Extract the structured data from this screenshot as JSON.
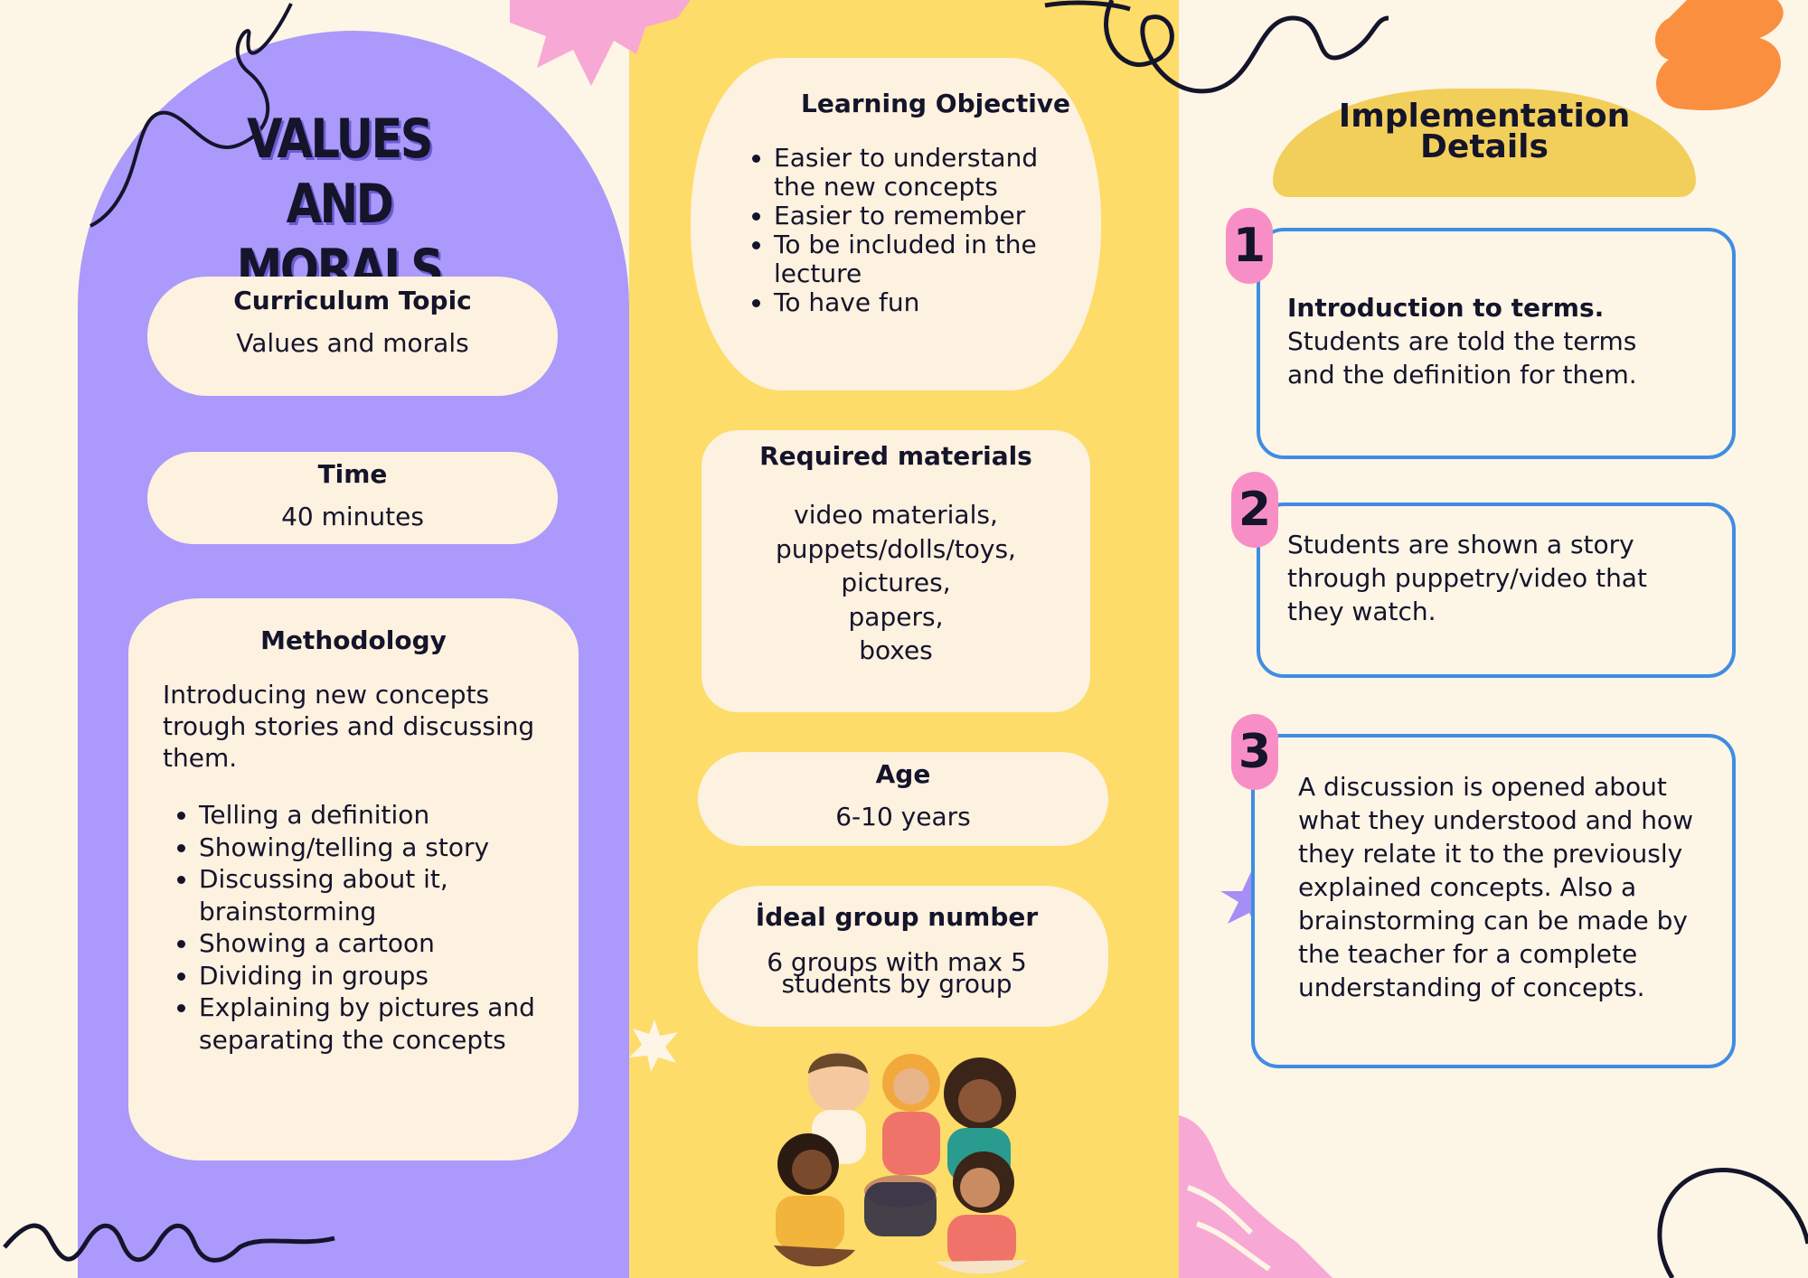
{
  "title": {
    "line1": "VALUES AND",
    "line2": "MORALS"
  },
  "left": {
    "curriculum": {
      "heading": "Curriculum Topic",
      "value": "Values and morals"
    },
    "time": {
      "heading": "Time",
      "value": "40 minutes"
    },
    "methodology": {
      "heading": "Methodology",
      "intro": "Introducing new concepts trough stories and discussing them.",
      "items": [
        "Telling a definition",
        "Showing/telling a story",
        "Discussing about it, brainstorming",
        "Showing a cartoon",
        "Dividing in groups",
        "Explaining by pictures and separating the concepts"
      ]
    }
  },
  "middle": {
    "objective": {
      "heading": "Learning Objective",
      "items": [
        "Easier to understand the new concepts",
        "Easier to remember",
        "To be included in the lecture",
        "To have fun"
      ]
    },
    "materials": {
      "heading": "Required materials",
      "lines": [
        "video materials,",
        "puppets/dolls/toys,",
        "pictures,",
        "papers,",
        "boxes"
      ]
    },
    "age": {
      "heading": "Age",
      "value": "6-10 years"
    },
    "group": {
      "heading": "İdeal group number",
      "line1": "6 groups with max 5",
      "line2": "students by group"
    }
  },
  "right": {
    "heading": {
      "line1": "Implementation",
      "line2": "Details"
    },
    "steps": [
      {
        "number": "1",
        "bold": "Introduction to terms.",
        "text": "Students are told the terms and the definition for them."
      },
      {
        "number": "2",
        "text": "Students are shown a story through puppetry/video that they watch."
      },
      {
        "number": "3",
        "text": "A discussion is opened about what they understood and how they relate it to the previously explained concepts. Also a brainstorming can be made by the teacher for a complete understanding of concepts."
      }
    ]
  },
  "colors": {
    "purple": "#ab99fb",
    "yellow": "#fddc6a",
    "cream": "#fdf5e6",
    "blue": "#3f8de3",
    "pink": "#f78fc6",
    "orange": "#fa8f3f"
  },
  "illustration": {
    "subject": "children-sitting-in-circle"
  }
}
